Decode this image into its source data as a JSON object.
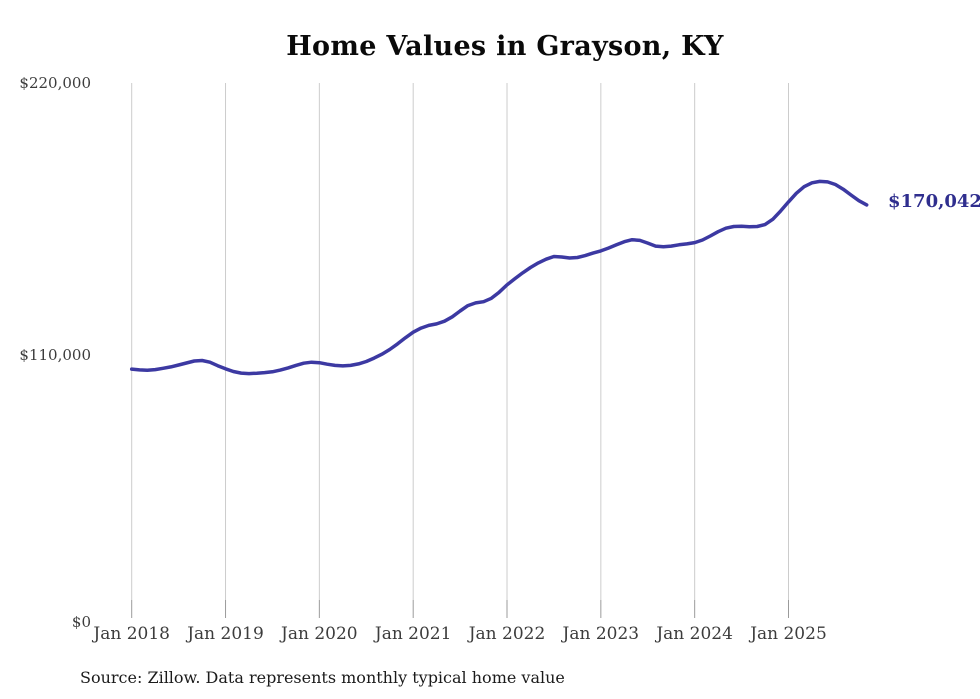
{
  "title": "Home Values in Grayson, KY",
  "source_note": "Source: Zillow. Data represents monthly typical home value",
  "end_label": "$170,042",
  "colors": {
    "line": "#3c39a2",
    "end_label_text": "#2f2e8e",
    "gridline": "#cccccc",
    "tick_mark": "#9b9b9b",
    "axis_text": "#3c3c3c",
    "title_text": "#0a0a0a",
    "background": "#ffffff"
  },
  "y_axis": {
    "ticks": [
      "$220,000",
      "$110,000",
      "$0"
    ],
    "min": 0,
    "max": 220000
  },
  "x_axis": {
    "ticks": [
      "Jan 2018",
      "Jan 2019",
      "Jan 2020",
      "Jan 2021",
      "Jan 2022",
      "Jan 2023",
      "Jan 2024",
      "Jan 2025"
    ]
  },
  "chart_data": {
    "type": "line",
    "title": "Home Values in Grayson, KY",
    "xlabel": "",
    "ylabel": "",
    "ylim": [
      0,
      220000
    ],
    "grid": "vertical-yearly",
    "legend": "none",
    "last_point_label": "$170,042",
    "series_name": "Typical home value (monthly, Zillow)",
    "x": [
      "2018-01",
      "2018-02",
      "2018-03",
      "2018-04",
      "2018-05",
      "2018-06",
      "2018-07",
      "2018-08",
      "2018-09",
      "2018-10",
      "2018-11",
      "2018-12",
      "2019-01",
      "2019-02",
      "2019-03",
      "2019-04",
      "2019-05",
      "2019-06",
      "2019-07",
      "2019-08",
      "2019-09",
      "2019-10",
      "2019-11",
      "2019-12",
      "2020-01",
      "2020-02",
      "2020-03",
      "2020-04",
      "2020-05",
      "2020-06",
      "2020-07",
      "2020-08",
      "2020-09",
      "2020-10",
      "2020-11",
      "2020-12",
      "2021-01",
      "2021-02",
      "2021-03",
      "2021-04",
      "2021-05",
      "2021-06",
      "2021-07",
      "2021-08",
      "2021-09",
      "2021-10",
      "2021-11",
      "2021-12",
      "2022-01",
      "2022-02",
      "2022-03",
      "2022-04",
      "2022-05",
      "2022-06",
      "2022-07",
      "2022-08",
      "2022-09",
      "2022-10",
      "2022-11",
      "2022-12",
      "2023-01",
      "2023-02",
      "2023-03",
      "2023-04",
      "2023-05",
      "2023-06",
      "2023-07",
      "2023-08",
      "2023-09",
      "2023-10",
      "2023-11",
      "2023-12",
      "2024-01",
      "2024-02",
      "2024-03",
      "2024-04",
      "2024-05",
      "2024-06",
      "2024-07",
      "2024-08",
      "2024-09",
      "2024-10",
      "2024-11",
      "2024-12",
      "2025-01",
      "2025-02",
      "2025-03",
      "2025-04",
      "2025-05",
      "2025-06",
      "2025-07",
      "2025-08",
      "2025-09",
      "2025-10",
      "2025-11"
    ],
    "values": [
      102800,
      102480,
      102350,
      102600,
      103100,
      103700,
      104450,
      105300,
      106100,
      106300,
      105600,
      104200,
      102900,
      101800,
      101150,
      100950,
      101100,
      101350,
      101700,
      102400,
      103300,
      104300,
      105200,
      105600,
      105400,
      104800,
      104300,
      104100,
      104300,
      104900,
      105900,
      107300,
      108900,
      110800,
      113100,
      115600,
      117900,
      119600,
      120700,
      121300,
      122400,
      124200,
      126600,
      128800,
      129900,
      130400,
      131800,
      134300,
      137300,
      139800,
      142200,
      144400,
      146300,
      147800,
      148900,
      148700,
      148300,
      148500,
      149300,
      150300,
      151200,
      152400,
      153700,
      155000,
      155800,
      155500,
      154400,
      153200,
      152900,
      153200,
      153700,
      154100,
      154600,
      155700,
      157300,
      159100,
      160500,
      161200,
      161300,
      161100,
      161200,
      162000,
      164200,
      167600,
      171300,
      174800,
      177500,
      179100,
      179700,
      179500,
      178400,
      176500,
      174100,
      171800,
      170042
    ]
  }
}
